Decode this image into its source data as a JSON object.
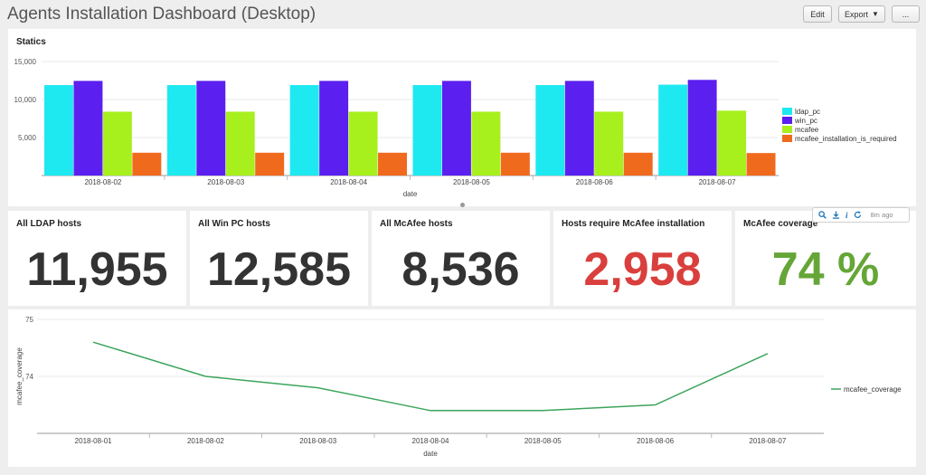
{
  "header": {
    "title": "Agents Installation Dashboard (Desktop)",
    "edit_label": "Edit",
    "export_label": "Export",
    "more_label": "..."
  },
  "statics_panel": {
    "title": "Statics"
  },
  "singles": [
    {
      "label": "All LDAP hosts",
      "value": "11,955",
      "color": "#333333"
    },
    {
      "label": "All Win PC hosts",
      "value": "12,585",
      "color": "#333333"
    },
    {
      "label": "All McAfee hosts",
      "value": "8,536",
      "color": "#333333"
    },
    {
      "label": "Hosts require McAfee installation",
      "value": "2,958",
      "color": "#d93f3c"
    },
    {
      "label": "McAfee coverage",
      "value": "74 %",
      "color": "#65a637"
    }
  ],
  "toolbar": {
    "ago": "8m ago",
    "info": "i"
  },
  "chart_data": [
    {
      "type": "bar",
      "title": "Statics",
      "xlabel": "date",
      "ylabel": "",
      "categories": [
        "2018-08-02",
        "2018-08-03",
        "2018-08-04",
        "2018-08-05",
        "2018-08-06",
        "2018-08-07"
      ],
      "series": [
        {
          "name": "ldap_pc",
          "color": "#1ee9f0",
          "values": [
            11900,
            11900,
            11900,
            11900,
            11900,
            11955
          ]
        },
        {
          "name": "win_pc",
          "color": "#5b1fef",
          "values": [
            12450,
            12450,
            12450,
            12450,
            12450,
            12585
          ]
        },
        {
          "name": "mcafee",
          "color": "#a8ef1e",
          "values": [
            8400,
            8400,
            8400,
            8400,
            8400,
            8536
          ]
        },
        {
          "name": "mcafee_installation_is_required",
          "color": "#f06a1e",
          "values": [
            3000,
            3000,
            3000,
            3000,
            3000,
            2958
          ]
        }
      ],
      "yticks": [
        "5,000",
        "10,000",
        "15,000"
      ],
      "ylim": [
        0,
        15000
      ],
      "legend": "right",
      "grid": true
    },
    {
      "type": "line",
      "title": "",
      "xlabel": "date",
      "ylabel": "mcafee_coverage",
      "categories": [
        "2018-08-01",
        "2018-08-02",
        "2018-08-03",
        "2018-08-04",
        "2018-08-05",
        "2018-08-06",
        "2018-08-07"
      ],
      "series": [
        {
          "name": "mcafee_coverage",
          "color": "#3ca55c",
          "values": [
            74.6,
            74.0,
            73.8,
            73.4,
            73.4,
            73.5,
            74.4
          ]
        }
      ],
      "yticks": [
        "74",
        "75"
      ],
      "ylim": [
        73.0,
        75.0
      ],
      "legend": "right",
      "grid": true
    }
  ]
}
